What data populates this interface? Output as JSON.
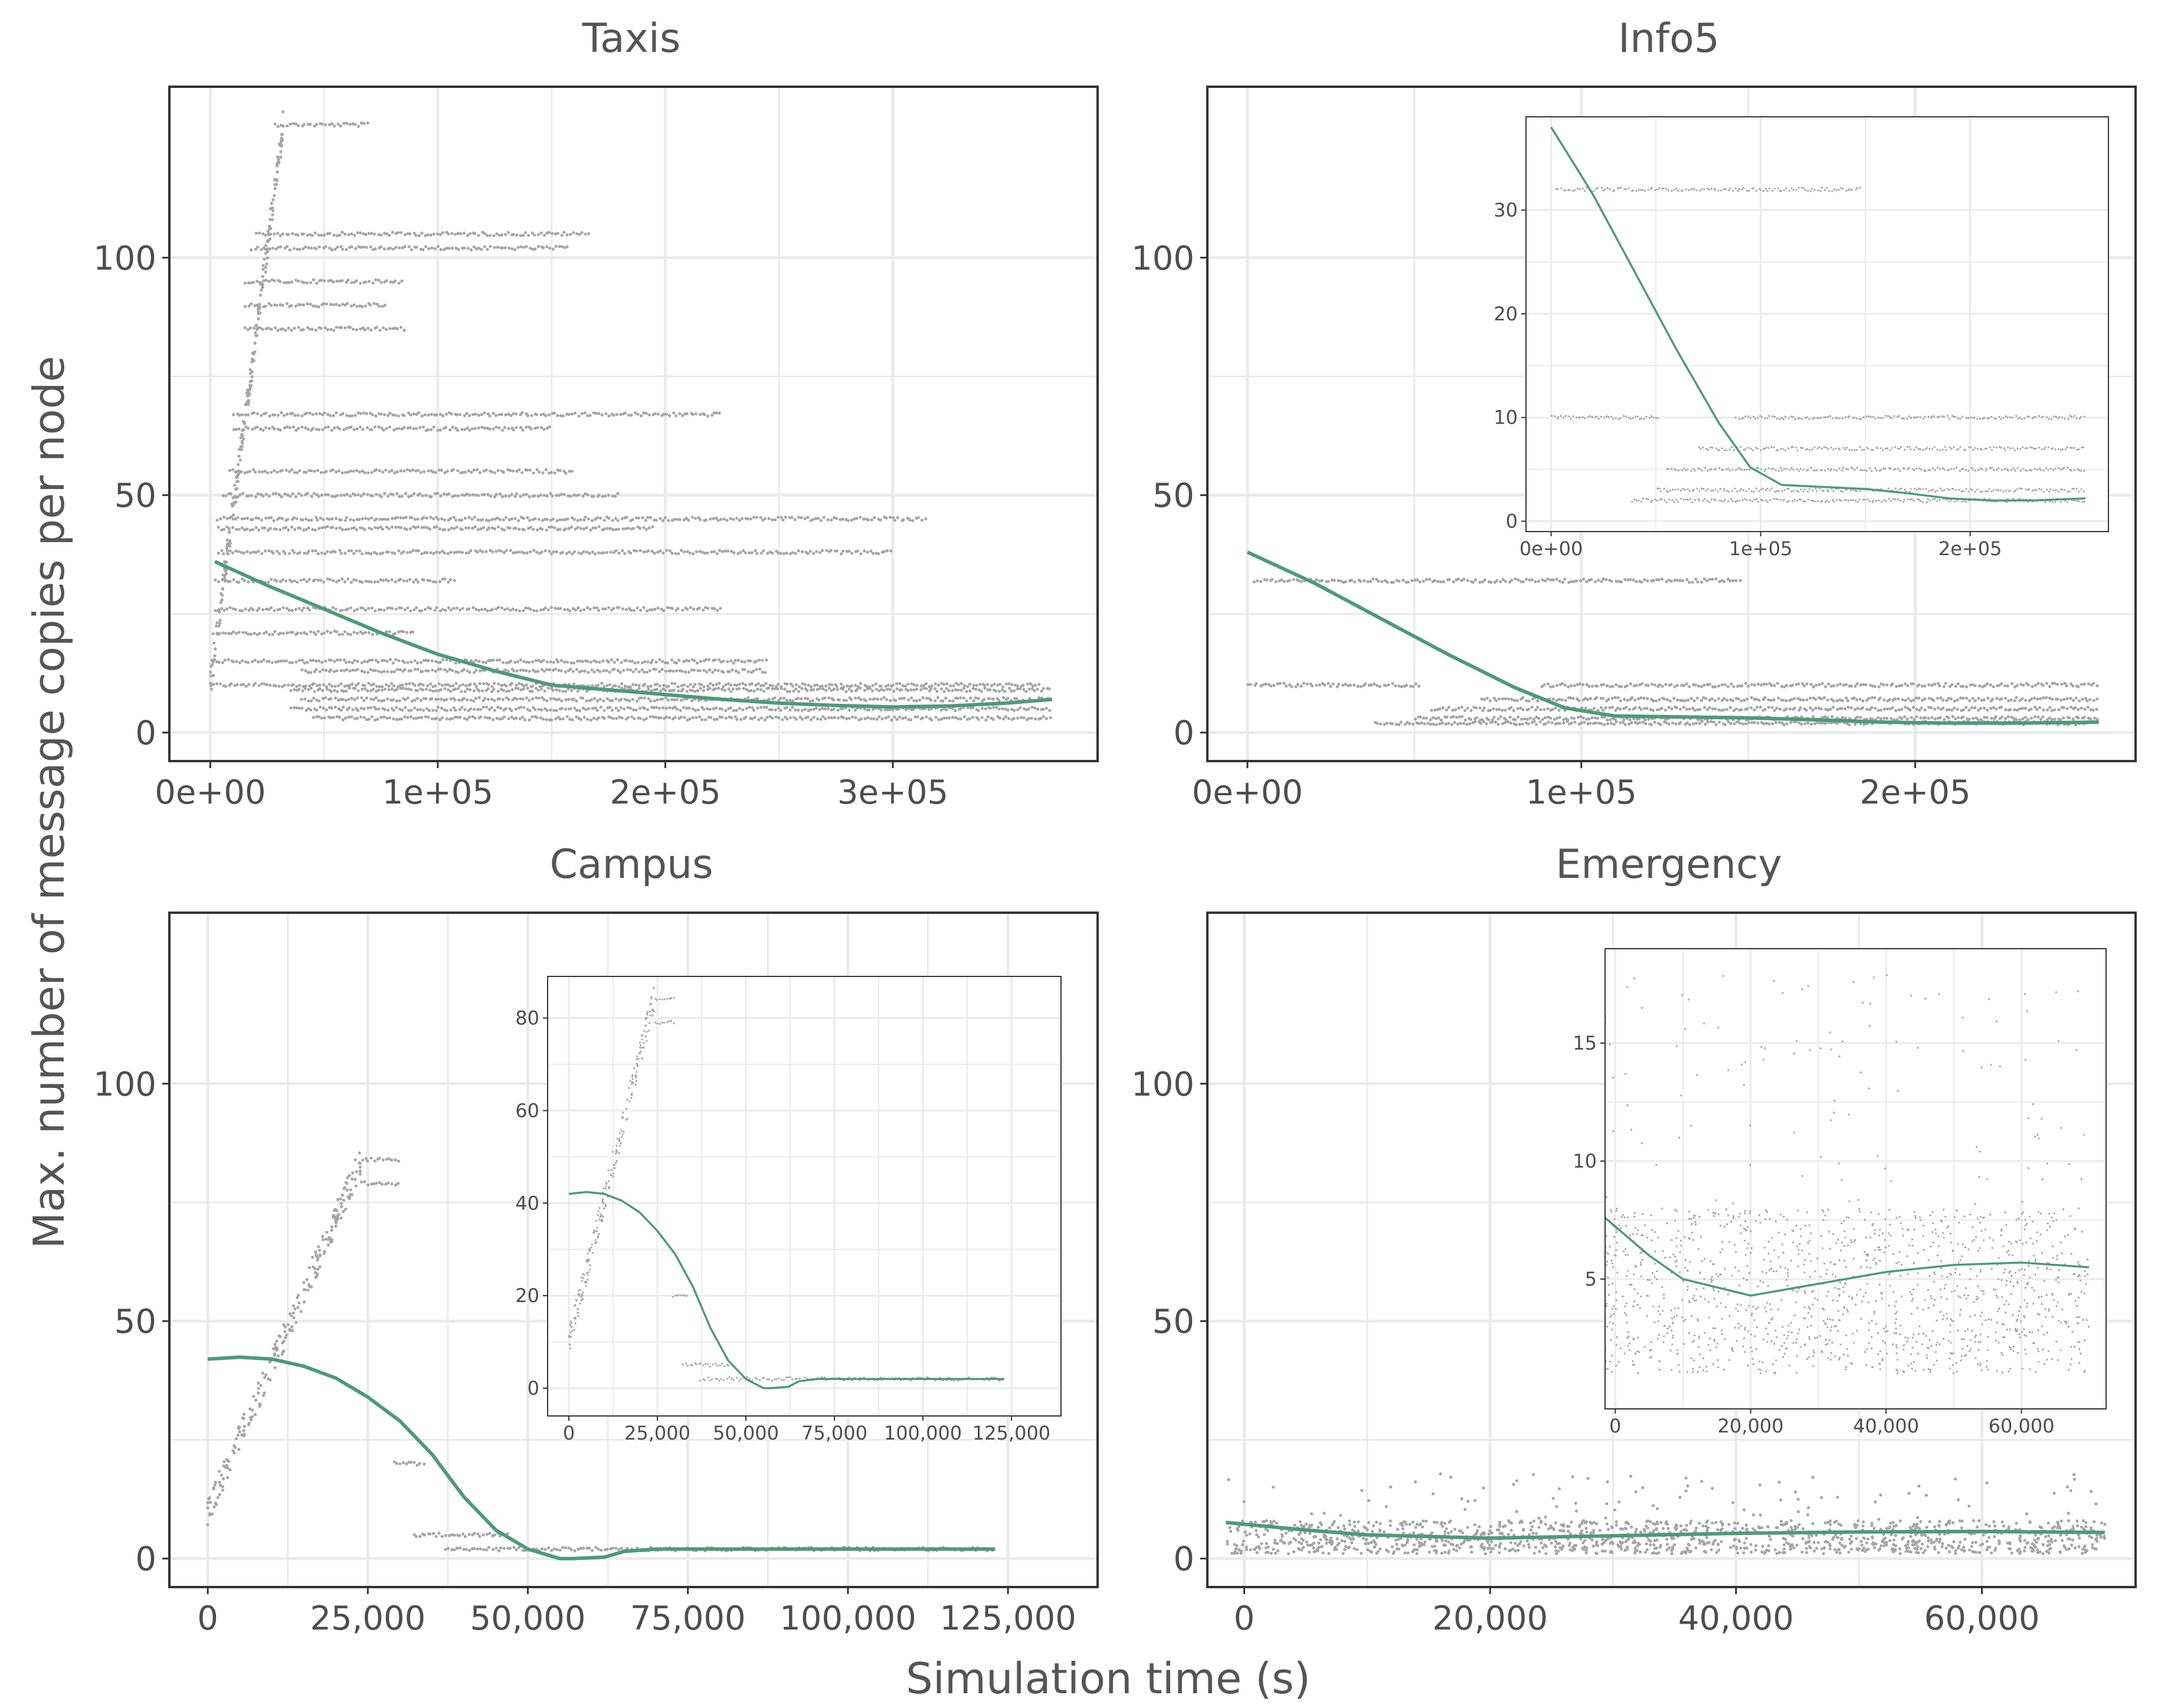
{
  "figure": {
    "xlabel": "Simulation time (s)",
    "ylabel": "Max. number of message copies per node"
  },
  "colors": {
    "points": "#a6a6a6",
    "smooth": "#4e9a78",
    "grid": "#ebebeb",
    "frame": "#333333"
  },
  "chart_data": [
    {
      "type": "scatter",
      "title": "Taxis",
      "xlim": [
        -18000,
        390000
      ],
      "ylim": [
        -6,
        136
      ],
      "xticks": [
        0,
        100000,
        200000,
        300000
      ],
      "xtick_labels": [
        "0e+00",
        "1e+05",
        "2e+05",
        "3e+05"
      ],
      "yticks": [
        0,
        50,
        100
      ],
      "ytick_labels": [
        "0",
        "50",
        "100"
      ],
      "bands": [
        {
          "y": 128,
          "x0": 28000,
          "x1": 70000
        },
        {
          "y": 105,
          "x0": 20000,
          "x1": 167000
        },
        {
          "y": 102,
          "x0": 18000,
          "x1": 158000
        },
        {
          "y": 95,
          "x0": 15000,
          "x1": 85000
        },
        {
          "y": 90,
          "x0": 15000,
          "x1": 78000
        },
        {
          "y": 85,
          "x0": 15000,
          "x1": 86000
        },
        {
          "y": 67,
          "x0": 10000,
          "x1": 225000
        },
        {
          "y": 64,
          "x0": 10000,
          "x1": 150000
        },
        {
          "y": 55,
          "x0": 8000,
          "x1": 160000
        },
        {
          "y": 50,
          "x0": 5000,
          "x1": 180000
        },
        {
          "y": 45,
          "x0": 3000,
          "x1": 315000
        },
        {
          "y": 43,
          "x0": 3000,
          "x1": 195000
        },
        {
          "y": 38,
          "x0": 3000,
          "x1": 300000
        },
        {
          "y": 32,
          "x0": 2000,
          "x1": 108000
        },
        {
          "y": 26,
          "x0": 2000,
          "x1": 225000
        },
        {
          "y": 21,
          "x0": 1000,
          "x1": 90000
        },
        {
          "y": 15,
          "x0": 1000,
          "x1": 245000
        },
        {
          "y": 13,
          "x0": 40000,
          "x1": 245000
        },
        {
          "y": 10,
          "x0": 0,
          "x1": 365000
        },
        {
          "y": 9,
          "x0": 35000,
          "x1": 370000
        },
        {
          "y": 7,
          "x0": 40000,
          "x1": 370000
        },
        {
          "y": 5,
          "x0": 35000,
          "x1": 370000
        },
        {
          "y": 3,
          "x0": 45000,
          "x1": 370000
        }
      ],
      "rise": {
        "x0": 0,
        "x1": 32000,
        "y0": 10,
        "y1": 128
      },
      "smooth": {
        "x": [
          2000,
          25000,
          50000,
          75000,
          100000,
          125000,
          150000,
          175000,
          200000,
          225000,
          250000,
          275000,
          300000,
          325000,
          350000,
          370000
        ],
        "y": [
          36,
          31,
          26,
          21,
          16.5,
          13,
          10,
          9,
          8,
          7,
          6.2,
          5.7,
          5.4,
          5.6,
          6.2,
          7
        ]
      }
    },
    {
      "type": "scatter",
      "title": "Info5",
      "xlim": [
        -12000,
        266000
      ],
      "ylim": [
        -6,
        136
      ],
      "xticks": [
        0,
        100000,
        200000
      ],
      "xtick_labels": [
        "0e+00",
        "1e+05",
        "2e+05"
      ],
      "yticks": [
        0,
        50,
        100
      ],
      "ytick_labels": [
        "0",
        "50",
        "100"
      ],
      "bands": [
        {
          "y": 32,
          "x0": 2000,
          "x1": 148000
        },
        {
          "y": 10,
          "x0": 0,
          "x1": 52000
        },
        {
          "y": 10,
          "x0": 88000,
          "x1": 255000
        },
        {
          "y": 7,
          "x0": 70000,
          "x1": 255000
        },
        {
          "y": 5,
          "x0": 55000,
          "x1": 255000
        },
        {
          "y": 3,
          "x0": 50000,
          "x1": 255000
        },
        {
          "y": 2,
          "x0": 38000,
          "x1": 255000
        }
      ],
      "rise": null,
      "smooth": {
        "x": [
          0,
          20000,
          40000,
          60000,
          80000,
          95000,
          110000,
          130000,
          150000,
          170000,
          190000,
          210000,
          230000,
          255000
        ],
        "y": [
          38,
          31.5,
          24,
          16.5,
          9.5,
          5.2,
          3.5,
          3.3,
          3.1,
          2.7,
          2.2,
          2.0,
          2.0,
          2.2
        ]
      },
      "inset": {
        "xlim": [
          -12000,
          266000
        ],
        "ylim": [
          -1,
          39
        ],
        "xticks": [
          0,
          100000,
          200000
        ],
        "xtick_labels": [
          "0e+00",
          "1e+05",
          "2e+05"
        ],
        "yticks": [
          0,
          10,
          20,
          30
        ],
        "ytick_labels": [
          "0",
          "10",
          "20",
          "30"
        ]
      }
    },
    {
      "type": "scatter",
      "title": "Campus",
      "xlim": [
        -6000,
        139000
      ],
      "ylim": [
        -6,
        136
      ],
      "xticks": [
        0,
        25000,
        50000,
        75000,
        100000,
        125000
      ],
      "xtick_labels": [
        "0",
        "25,000",
        "50,000",
        "75,000",
        "100,000",
        "125,000"
      ],
      "yticks": [
        0,
        50,
        100
      ],
      "ytick_labels": [
        "0",
        "50",
        "100"
      ],
      "bands": [
        {
          "y": 84,
          "x0": 24000,
          "x1": 30000
        },
        {
          "y": 79,
          "x0": 24000,
          "x1": 30000
        },
        {
          "y": 20,
          "x0": 29000,
          "x1": 34000
        },
        {
          "y": 5,
          "x0": 32000,
          "x1": 47000
        },
        {
          "y": 2,
          "x0": 37000,
          "x1": 123000
        }
      ],
      "rise": {
        "x0": 0,
        "x1": 24000,
        "y0": 10,
        "y1": 84
      },
      "smooth": {
        "x": [
          0,
          5000,
          10000,
          15000,
          20000,
          25000,
          30000,
          35000,
          40000,
          45000,
          50000,
          55000,
          57000,
          62000,
          65000,
          70000,
          80000,
          100000,
          123000
        ],
        "y": [
          42,
          42.4,
          42,
          40.5,
          38,
          34,
          29,
          22,
          13,
          6,
          2,
          0,
          0,
          0.3,
          1.5,
          2,
          2,
          2,
          2
        ]
      },
      "inset": {
        "xlim": [
          -6000,
          139000
        ],
        "ylim": [
          -6,
          89
        ],
        "xticks": [
          0,
          25000,
          50000,
          75000,
          100000,
          125000
        ],
        "xtick_labels": [
          "0",
          "25,000",
          "50,000",
          "75,000",
          "100,000",
          "125,000"
        ],
        "yticks": [
          0,
          20,
          40,
          60,
          80
        ],
        "ytick_labels": [
          "0",
          "20",
          "40",
          "60",
          "80"
        ]
      }
    },
    {
      "type": "scatter",
      "title": "Emergency",
      "xlim": [
        -3000,
        72500
      ],
      "ylim": [
        -6,
        136
      ],
      "xticks": [
        0,
        20000,
        40000,
        60000
      ],
      "xtick_labels": [
        "0",
        "20,000",
        "40,000",
        "60,000"
      ],
      "yticks": [
        0,
        50,
        100
      ],
      "ytick_labels": [
        "0",
        "50",
        "100"
      ],
      "cloud": {
        "x0": -1500,
        "x1": 70000,
        "ymin": 1,
        "ymax": 8
      },
      "smooth": {
        "x": [
          -1500,
          5000,
          10000,
          20000,
          30000,
          40000,
          50000,
          60000,
          70000
        ],
        "y": [
          7.6,
          6,
          5,
          4.3,
          4.8,
          5.3,
          5.6,
          5.7,
          5.5
        ]
      },
      "inset": {
        "xlim": [
          -1500,
          72500
        ],
        "ylim": [
          -0.5,
          19
        ],
        "xticks": [
          0,
          20000,
          40000,
          60000
        ],
        "xtick_labels": [
          "0",
          "20,000",
          "40,000",
          "60,000"
        ],
        "yticks": [
          5,
          10,
          15
        ],
        "ytick_labels": [
          "5",
          "10",
          "15"
        ]
      }
    }
  ]
}
